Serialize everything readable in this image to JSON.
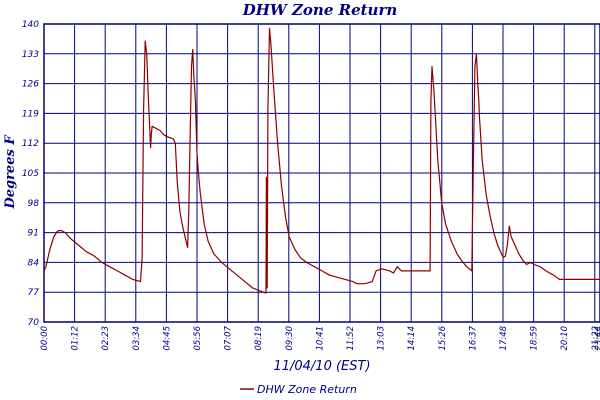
{
  "chart_data": {
    "type": "line",
    "title": "DHW Zone Return",
    "xlabel": "11/04/10 (EST)",
    "ylabel": "Degrees F",
    "ylim": [
      70,
      140
    ],
    "xlim_minutes": [
      0,
      1440
    ],
    "y_ticks": [
      "70",
      "77",
      "84",
      "91",
      "98",
      "105",
      "112",
      "119",
      "126",
      "133",
      "140"
    ],
    "x_ticks": [
      "00:00",
      "01:12",
      "02:23",
      "03:34",
      "04:45",
      "05:56",
      "07:07",
      "08:19",
      "09:30",
      "10:41",
      "11:52",
      "13:03",
      "14:14",
      "15:26",
      "16:37",
      "17:48",
      "18:59",
      "20:10",
      "21:22",
      "22:33",
      "23:44",
      "23:44"
    ],
    "grid": true,
    "legend_position": "bottom-center",
    "line_color": "#8b0000",
    "series": [
      {
        "name": "DHW Zone Return",
        "points": [
          [
            0,
            82
          ],
          [
            5,
            83
          ],
          [
            15,
            87
          ],
          [
            25,
            90
          ],
          [
            35,
            91.4
          ],
          [
            45,
            91.5
          ],
          [
            55,
            91
          ],
          [
            70,
            89.5
          ],
          [
            90,
            88
          ],
          [
            110,
            86.5
          ],
          [
            130,
            85.5
          ],
          [
            150,
            84
          ],
          [
            170,
            83
          ],
          [
            190,
            82
          ],
          [
            210,
            81
          ],
          [
            230,
            80
          ],
          [
            250,
            79.5
          ],
          [
            254,
            85
          ],
          [
            258,
            120
          ],
          [
            262,
            136
          ],
          [
            266,
            133
          ],
          [
            270,
            123
          ],
          [
            274,
            115
          ],
          [
            276,
            111
          ],
          [
            278,
            114
          ],
          [
            280,
            116
          ],
          [
            290,
            115.5
          ],
          [
            300,
            115
          ],
          [
            310,
            114
          ],
          [
            320,
            113.5
          ],
          [
            335,
            113
          ],
          [
            340,
            112
          ],
          [
            345,
            103
          ],
          [
            352,
            96
          ],
          [
            360,
            92
          ],
          [
            368,
            89
          ],
          [
            372,
            87.5
          ],
          [
            375,
            96
          ],
          [
            378,
            112
          ],
          [
            382,
            130
          ],
          [
            385,
            134
          ],
          [
            388,
            128
          ],
          [
            392,
            122
          ],
          [
            396,
            110
          ],
          [
            400,
            105
          ],
          [
            405,
            100
          ],
          [
            415,
            93
          ],
          [
            425,
            89
          ],
          [
            440,
            86
          ],
          [
            460,
            84
          ],
          [
            480,
            82.5
          ],
          [
            500,
            81
          ],
          [
            520,
            79.5
          ],
          [
            540,
            78
          ],
          [
            560,
            77.3
          ],
          [
            575,
            76.8
          ],
          [
            576,
            104
          ],
          [
            578,
            78
          ],
          [
            580,
            120
          ],
          [
            584,
            139
          ],
          [
            588,
            135
          ],
          [
            595,
            125
          ],
          [
            605,
            112
          ],
          [
            615,
            102
          ],
          [
            625,
            95
          ],
          [
            635,
            90
          ],
          [
            650,
            87
          ],
          [
            665,
            85
          ],
          [
            680,
            84
          ],
          [
            700,
            83
          ],
          [
            720,
            82
          ],
          [
            740,
            81
          ],
          [
            760,
            80.5
          ],
          [
            780,
            80
          ],
          [
            800,
            79.5
          ],
          [
            810,
            79
          ],
          [
            830,
            79
          ],
          [
            840,
            79.2
          ],
          [
            850,
            79.5
          ],
          [
            860,
            82
          ],
          [
            875,
            82.5
          ],
          [
            895,
            82
          ],
          [
            905,
            81.5
          ],
          [
            915,
            83
          ],
          [
            925,
            82
          ],
          [
            1000,
            82
          ],
          [
            1002,
            122
          ],
          [
            1005,
            130
          ],
          [
            1010,
            124
          ],
          [
            1020,
            108
          ],
          [
            1030,
            98
          ],
          [
            1040,
            93
          ],
          [
            1055,
            89
          ],
          [
            1070,
            86
          ],
          [
            1085,
            84
          ],
          [
            1095,
            83
          ],
          [
            1108,
            82
          ],
          [
            1112,
            108
          ],
          [
            1116,
            130
          ],
          [
            1120,
            133
          ],
          [
            1124,
            125
          ],
          [
            1126,
            122
          ],
          [
            1128,
            118
          ],
          [
            1135,
            108
          ],
          [
            1145,
            100
          ],
          [
            1155,
            95
          ],
          [
            1165,
            91
          ],
          [
            1175,
            88
          ],
          [
            1185,
            86
          ],
          [
            1190,
            85.2
          ],
          [
            1195,
            85.5
          ],
          [
            1200,
            88
          ],
          [
            1205,
            92.5
          ],
          [
            1210,
            90
          ],
          [
            1220,
            88
          ],
          [
            1230,
            86
          ],
          [
            1240,
            84.5
          ],
          [
            1250,
            83.5
          ],
          [
            1260,
            84
          ],
          [
            1270,
            83.5
          ],
          [
            1285,
            83
          ],
          [
            1300,
            82
          ],
          [
            1320,
            81
          ],
          [
            1335,
            80
          ],
          [
            1440,
            80
          ]
        ]
      }
    ]
  }
}
